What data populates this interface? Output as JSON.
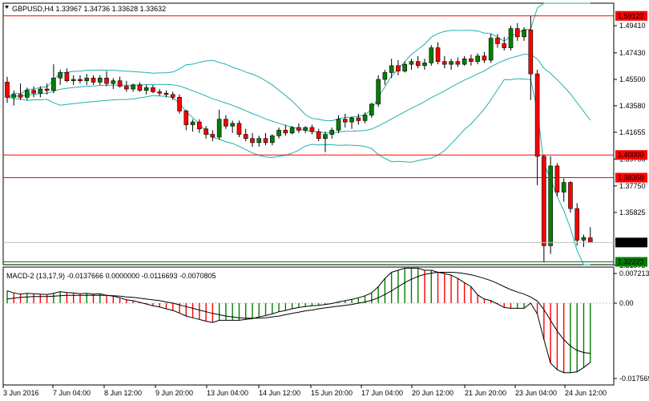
{
  "header": {
    "symbol": "GBPUSD,H4",
    "open": "1.33967",
    "high": "1.34736",
    "low": "1.33628",
    "close": "1.33632"
  },
  "price_axis": {
    "ticks": [
      "1.49410",
      "1.47430",
      "1.45500",
      "1.43580",
      "1.41655",
      "1.39700",
      "1.37750",
      "1.35825",
      "1.31975"
    ]
  },
  "level_lines": [
    {
      "label": "1.50122",
      "value": 1.50122,
      "color": "#ff0000"
    },
    {
      "label": "1.40000",
      "value": 1.4,
      "color": "#ff0000"
    },
    {
      "label": "1.38350",
      "value": 1.3835,
      "color": "#ff0000"
    },
    {
      "label": "1.32223",
      "value": 1.32223,
      "color": "#008000"
    }
  ],
  "current_price": {
    "label": "1.33632",
    "value": 1.33632
  },
  "indicator": {
    "title": "MACD-2 (13,17,9) -0.0137666 0.0000000 -0.0116693 -0.0070805",
    "ticks": [
      "0.007213",
      "0.00",
      "-0.017569"
    ]
  },
  "time_axis": {
    "labels": [
      "3 Jun 2016",
      "7 Jun 04:00",
      "8 Jun 12:00",
      "9 Jun 20:00",
      "13 Jun 04:00",
      "14 Jun 12:00",
      "15 Jun 20:00",
      "17 Jun 04:00",
      "20 Jun 12:00",
      "21 Jun 20:00",
      "23 Jun 04:00",
      "24 Jun 12:00"
    ]
  },
  "colors": {
    "bull": "#008000",
    "bear": "#ff0000",
    "bands": "#20b2aa",
    "macd_main": "#000000"
  },
  "chart_data": {
    "type": "candlestick",
    "candles": [
      [
        1.453,
        1.457,
        1.438,
        1.442
      ],
      [
        1.442,
        1.447,
        1.436,
        1.444
      ],
      [
        1.444,
        1.452,
        1.44,
        1.442
      ],
      [
        1.442,
        1.449,
        1.44,
        1.447
      ],
      [
        1.447,
        1.45,
        1.442,
        1.445
      ],
      [
        1.445,
        1.45,
        1.442,
        1.448
      ],
      [
        1.448,
        1.452,
        1.444,
        1.447
      ],
      [
        1.447,
        1.466,
        1.445,
        1.456
      ],
      [
        1.456,
        1.462,
        1.451,
        1.46
      ],
      [
        1.46,
        1.463,
        1.453,
        1.454
      ],
      [
        1.454,
        1.458,
        1.451,
        1.455
      ],
      [
        1.455,
        1.458,
        1.452,
        1.454
      ],
      [
        1.454,
        1.459,
        1.451,
        1.456
      ],
      [
        1.456,
        1.458,
        1.451,
        1.453
      ],
      [
        1.453,
        1.458,
        1.451,
        1.456
      ],
      [
        1.456,
        1.461,
        1.45,
        1.452
      ],
      [
        1.452,
        1.456,
        1.448,
        1.454
      ],
      [
        1.454,
        1.457,
        1.449,
        1.45
      ],
      [
        1.45,
        1.454,
        1.446,
        1.448
      ],
      [
        1.448,
        1.452,
        1.446,
        1.451
      ],
      [
        1.451,
        1.453,
        1.446,
        1.447
      ],
      [
        1.447,
        1.451,
        1.444,
        1.449
      ],
      [
        1.449,
        1.451,
        1.445,
        1.446
      ],
      [
        1.446,
        1.448,
        1.443,
        1.445
      ],
      [
        1.445,
        1.447,
        1.442,
        1.444
      ],
      [
        1.444,
        1.446,
        1.44,
        1.442
      ],
      [
        1.442,
        1.444,
        1.43,
        1.432
      ],
      [
        1.432,
        1.433,
        1.418,
        1.422
      ],
      [
        1.422,
        1.426,
        1.417,
        1.424
      ],
      [
        1.424,
        1.426,
        1.416,
        1.419
      ],
      [
        1.419,
        1.421,
        1.412,
        1.415
      ],
      [
        1.415,
        1.418,
        1.41,
        1.413
      ],
      [
        1.413,
        1.433,
        1.411,
        1.426
      ],
      [
        1.426,
        1.429,
        1.419,
        1.421
      ],
      [
        1.421,
        1.425,
        1.416,
        1.423
      ],
      [
        1.423,
        1.425,
        1.413,
        1.415
      ],
      [
        1.415,
        1.419,
        1.41,
        1.412
      ],
      [
        1.412,
        1.416,
        1.406,
        1.409
      ],
      [
        1.409,
        1.414,
        1.406,
        1.412
      ],
      [
        1.412,
        1.416,
        1.407,
        1.409
      ],
      [
        1.409,
        1.415,
        1.407,
        1.414
      ],
      [
        1.414,
        1.42,
        1.412,
        1.418
      ],
      [
        1.418,
        1.422,
        1.414,
        1.416
      ],
      [
        1.416,
        1.421,
        1.415,
        1.42
      ],
      [
        1.42,
        1.423,
        1.416,
        1.418
      ],
      [
        1.418,
        1.421,
        1.416,
        1.42
      ],
      [
        1.42,
        1.422,
        1.415,
        1.417
      ],
      [
        1.417,
        1.419,
        1.41,
        1.412
      ],
      [
        1.412,
        1.417,
        1.402,
        1.415
      ],
      [
        1.415,
        1.42,
        1.412,
        1.418
      ],
      [
        1.418,
        1.429,
        1.416,
        1.426
      ],
      [
        1.426,
        1.43,
        1.42,
        1.424
      ],
      [
        1.424,
        1.428,
        1.419,
        1.427
      ],
      [
        1.427,
        1.43,
        1.422,
        1.425
      ],
      [
        1.425,
        1.431,
        1.423,
        1.429
      ],
      [
        1.429,
        1.438,
        1.427,
        1.437
      ],
      [
        1.437,
        1.458,
        1.435,
        1.455
      ],
      [
        1.455,
        1.462,
        1.451,
        1.46
      ],
      [
        1.46,
        1.47,
        1.456,
        1.465
      ],
      [
        1.465,
        1.469,
        1.458,
        1.461
      ],
      [
        1.461,
        1.468,
        1.46,
        1.466
      ],
      [
        1.466,
        1.47,
        1.462,
        1.468
      ],
      [
        1.468,
        1.472,
        1.463,
        1.465
      ],
      [
        1.465,
        1.47,
        1.462,
        1.467
      ],
      [
        1.467,
        1.48,
        1.465,
        1.478
      ],
      [
        1.478,
        1.482,
        1.466,
        1.468
      ],
      [
        1.468,
        1.472,
        1.463,
        1.466
      ],
      [
        1.466,
        1.47,
        1.462,
        1.468
      ],
      [
        1.468,
        1.471,
        1.464,
        1.466
      ],
      [
        1.466,
        1.472,
        1.465,
        1.47
      ],
      [
        1.47,
        1.473,
        1.465,
        1.468
      ],
      [
        1.468,
        1.474,
        1.466,
        1.472
      ],
      [
        1.472,
        1.475,
        1.467,
        1.469
      ],
      [
        1.469,
        1.488,
        1.467,
        1.485
      ],
      [
        1.485,
        1.488,
        1.478,
        1.481
      ],
      [
        1.481,
        1.486,
        1.476,
        1.478
      ],
      [
        1.478,
        1.494,
        1.476,
        1.492
      ],
      [
        1.492,
        1.496,
        1.483,
        1.486
      ],
      [
        1.486,
        1.493,
        1.483,
        1.491
      ],
      [
        1.491,
        1.5012,
        1.44,
        1.459
      ],
      [
        1.459,
        1.462,
        1.378,
        1.399
      ],
      [
        1.399,
        1.4,
        1.322,
        1.334
      ],
      [
        1.334,
        1.399,
        1.328,
        1.392
      ],
      [
        1.392,
        1.394,
        1.37,
        1.373
      ],
      [
        1.373,
        1.383,
        1.366,
        1.38
      ],
      [
        1.38,
        1.381,
        1.358,
        1.361
      ],
      [
        1.361,
        1.365,
        1.334,
        1.338
      ],
      [
        1.338,
        1.342,
        1.333,
        1.34
      ],
      [
        1.3397,
        1.3474,
        1.3363,
        1.3363
      ]
    ],
    "macd": [
      0.003,
      0.0025,
      0.0022,
      0.0024,
      0.0023,
      0.0022,
      0.0021,
      0.0024,
      0.0028,
      0.0026,
      0.0025,
      0.0023,
      0.0024,
      0.0022,
      0.0023,
      0.0019,
      0.0017,
      0.0013,
      0.0008,
      0.0006,
      0.0002,
      -0.0002,
      -0.0006,
      -0.0009,
      -0.0013,
      -0.0017,
      -0.0023,
      -0.003,
      -0.0034,
      -0.0038,
      -0.0042,
      -0.0045,
      -0.004,
      -0.004,
      -0.004,
      -0.004,
      -0.0038,
      -0.0036,
      -0.0032,
      -0.0029,
      -0.0025,
      -0.002,
      -0.0017,
      -0.0013,
      -0.001,
      -0.0008,
      -0.0006,
      -0.0005,
      -0.0003,
      -0.0001,
      0.0003,
      0.0006,
      0.0009,
      0.0013,
      0.0018,
      0.0025,
      0.004,
      0.006,
      0.0075,
      0.008,
      0.0085,
      0.0085,
      0.0085,
      0.008,
      0.008,
      0.0075,
      0.0072,
      0.0068,
      0.006,
      0.005,
      0.004,
      0.002,
      0.001,
      0.0006,
      -0.0002,
      -0.001,
      -0.0012,
      -0.0012,
      -0.0012,
      0.0,
      -0.0025,
      -0.0085,
      -0.014,
      -0.0155,
      -0.0162,
      -0.0162,
      -0.016,
      -0.015,
      -0.0138
    ],
    "macd_signal": [
      0.001,
      0.0012,
      0.0014,
      0.0015,
      0.0016,
      0.0016,
      0.0016,
      0.0017,
      0.0018,
      0.0019,
      0.0019,
      0.0019,
      0.0019,
      0.0019,
      0.0019,
      0.0019,
      0.0018,
      0.0017,
      0.0015,
      0.0014,
      0.0012,
      0.001,
      0.0008,
      0.0006,
      0.0003,
      0.0,
      -0.0004,
      -0.0008,
      -0.0012,
      -0.0016,
      -0.002,
      -0.0024,
      -0.0027,
      -0.003,
      -0.0032,
      -0.0034,
      -0.0035,
      -0.0035,
      -0.0035,
      -0.0034,
      -0.0032,
      -0.003,
      -0.0027,
      -0.0024,
      -0.0021,
      -0.0018,
      -0.0016,
      -0.0013,
      -0.0011,
      -0.0009,
      -0.0007,
      -0.0005,
      -0.0003,
      0.0,
      0.0003,
      0.0007,
      0.0013,
      0.0021,
      0.003,
      0.004,
      0.005,
      0.0058,
      0.0065,
      0.007,
      0.0073,
      0.0075,
      0.0075,
      0.0075,
      0.0074,
      0.0072,
      0.0069,
      0.0065,
      0.006,
      0.0055,
      0.0048,
      0.004,
      0.0033,
      0.0027,
      0.0022,
      0.0015,
      0.0005,
      -0.0015,
      -0.004,
      -0.0065,
      -0.0085,
      -0.01,
      -0.011,
      -0.0115,
      -0.0117
    ]
  }
}
